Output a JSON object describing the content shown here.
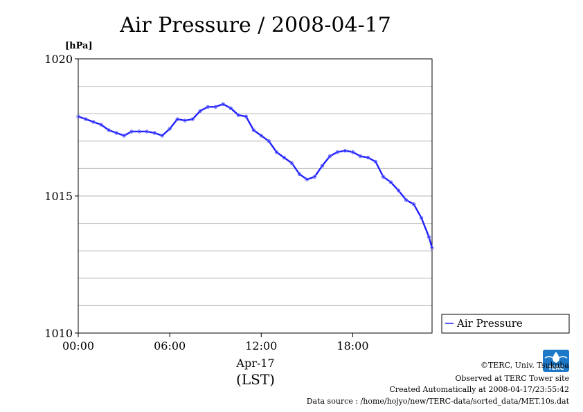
{
  "colors": {
    "series": "#1f1fff",
    "grid": "#b4b4b4",
    "logo": "#1e78c8"
  },
  "chart_data": {
    "type": "line",
    "title": "Air Pressure / 2008-04-17",
    "ylabel": "[hPa]",
    "ylim": [
      1010,
      1020
    ],
    "yticks": [
      "1010",
      "1015",
      "1020"
    ],
    "ygrid_step": 1,
    "xlim": [
      0,
      23.2
    ],
    "xticks": [
      {
        "h": 0,
        "label": "00:00"
      },
      {
        "h": 6,
        "label": "06:00"
      },
      {
        "h": 12,
        "label": "12:00"
      },
      {
        "h": 18,
        "label": "18:00"
      }
    ],
    "xlabel_date": "Apr-17",
    "xlabel_tz": "(LST)",
    "legend": {
      "position": "right",
      "entry": "Air Pressure"
    },
    "series": [
      {
        "name": "Air Pressure",
        "x": [
          0.0,
          0.5,
          1.0,
          1.5,
          2.0,
          2.5,
          3.0,
          3.5,
          4.0,
          4.5,
          5.0,
          5.5,
          6.0,
          6.5,
          7.0,
          7.5,
          8.0,
          8.5,
          9.0,
          9.5,
          10.0,
          10.5,
          11.0,
          11.5,
          12.0,
          12.5,
          13.0,
          13.5,
          14.0,
          14.5,
          15.0,
          15.5,
          16.0,
          16.5,
          17.0,
          17.5,
          18.0,
          18.5,
          19.0,
          19.5,
          20.0,
          20.5,
          21.0,
          21.5,
          22.0,
          22.5,
          23.0,
          23.2
        ],
        "y": [
          1017.9,
          1017.8,
          1017.7,
          1017.6,
          1017.4,
          1017.3,
          1017.2,
          1017.35,
          1017.35,
          1017.35,
          1017.3,
          1017.2,
          1017.45,
          1017.8,
          1017.75,
          1017.8,
          1018.1,
          1018.25,
          1018.25,
          1018.35,
          1018.2,
          1017.95,
          1017.9,
          1017.4,
          1017.2,
          1017.0,
          1016.6,
          1016.4,
          1016.2,
          1015.8,
          1015.6,
          1015.7,
          1016.1,
          1016.45,
          1016.6,
          1016.65,
          1016.6,
          1016.45,
          1016.4,
          1016.25,
          1015.7,
          1015.5,
          1015.2,
          1014.85,
          1014.7,
          1014.2,
          1013.5,
          1013.1
        ]
      }
    ]
  },
  "footer": {
    "copyright": "©TERC, Univ. Tsukuba",
    "observed": "Observed at TERC Tower site",
    "created": "Created Automatically at 2008-04-17/23:55:42",
    "source": "Data source : /home/hojyo/new/TERC-data/sorted_data/MET.10s.dat"
  },
  "logo": {
    "text": "TERC"
  }
}
